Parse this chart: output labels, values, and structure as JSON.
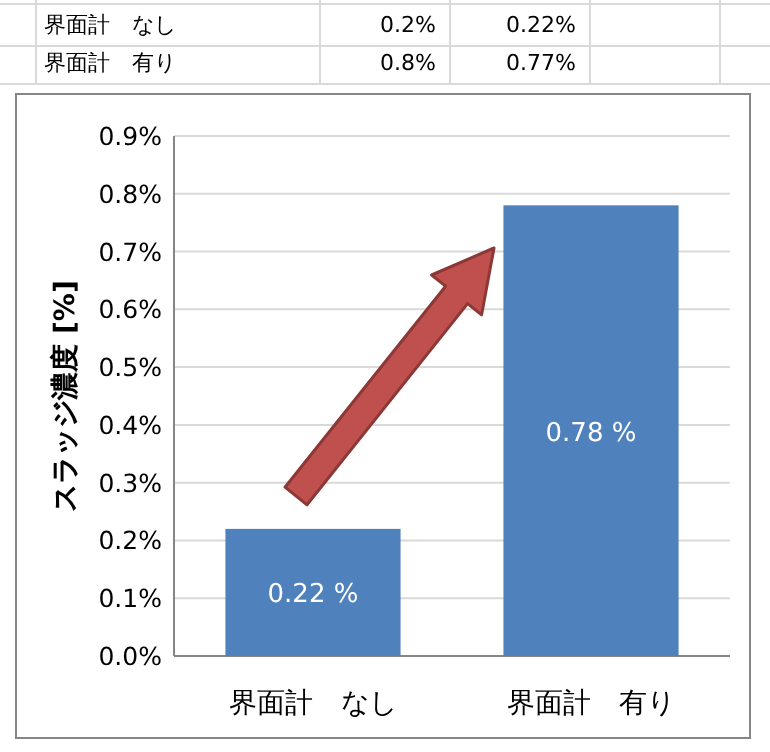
{
  "chart_data": {
    "type": "bar",
    "ylabel": "スラッジ濃度 [%]",
    "categories": [
      "界面計　なし",
      "界面計　有り"
    ],
    "values": [
      0.22,
      0.78
    ],
    "color": "#4f81bd",
    "value_labels": [
      "0.22 %",
      "0.78 %"
    ],
    "ylim": [
      0,
      0.9
    ],
    "yticks": [
      {
        "value": 0,
        "label": "0.0%"
      },
      {
        "value": 0.1,
        "label": "0.1%"
      },
      {
        "value": 0.2,
        "label": "0.2%"
      },
      {
        "value": 0.3,
        "label": "0.3%"
      },
      {
        "value": 0.4,
        "label": "0.4%"
      },
      {
        "value": 0.5,
        "label": "0.5%"
      },
      {
        "value": 0.6,
        "label": "0.6%"
      },
      {
        "value": 0.7,
        "label": "0.7%"
      },
      {
        "value": 0.8,
        "label": "0.8%"
      },
      {
        "value": 0.9,
        "label": "0.9%"
      }
    ],
    "grid": "y",
    "annotations": [
      "界面計　なし",
      "0.2%",
      "0.22%",
      "界面計　有り",
      "0.8%",
      "0.77%"
    ]
  }
}
